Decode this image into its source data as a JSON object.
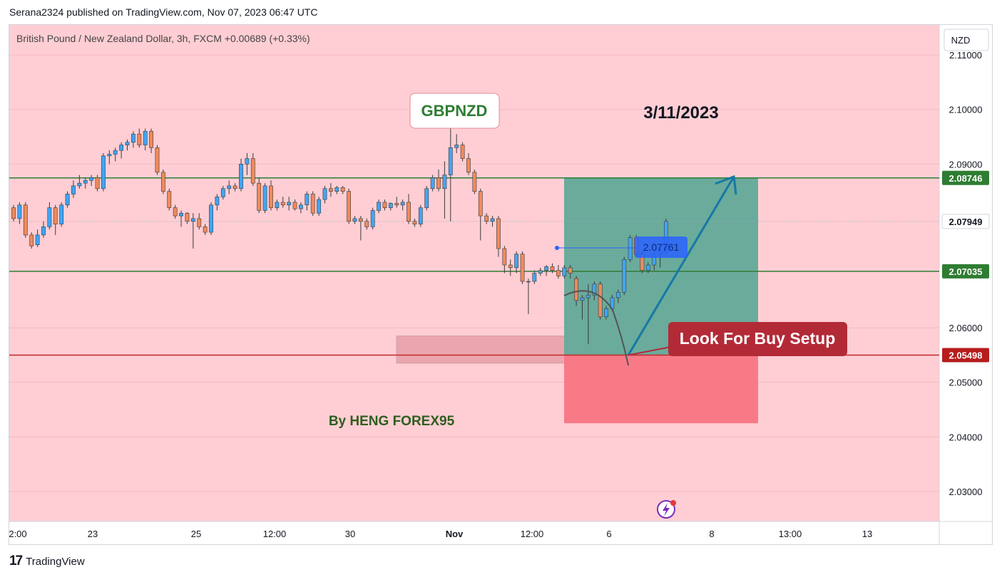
{
  "header": {
    "published": "Serana2324 published on TradingView.com, Nov 07, 2023 06:47 UTC"
  },
  "footer": {
    "brand": "TradingView",
    "logo": "17"
  },
  "chart_data": {
    "type": "candlestick",
    "symbol_line": {
      "symbol": "British Pound / New Zealand Dollar, 3h, FXCM",
      "change": "+0.00689 (+0.33%)"
    },
    "currency_button": "NZD",
    "ylim": [
      2.024,
      2.116
    ],
    "y_ticks": [
      "2.11000",
      "2.10000",
      "2.09000",
      "2.06000",
      "2.05000",
      "2.04000",
      "2.03000"
    ],
    "x_ticks": [
      {
        "label": "2:00",
        "bold": false
      },
      {
        "label": "23",
        "bold": false
      },
      {
        "label": "25",
        "bold": false
      },
      {
        "label": "12:00",
        "bold": false
      },
      {
        "label": "30",
        "bold": false
      },
      {
        "label": "Nov",
        "bold": true
      },
      {
        "label": "12:00",
        "bold": false
      },
      {
        "label": "6",
        "bold": false
      },
      {
        "label": "8",
        "bold": false
      },
      {
        "label": "13:00",
        "bold": false
      },
      {
        "label": "13",
        "bold": false
      }
    ],
    "price_labels": [
      {
        "value": 2.08746,
        "text": "2.08746",
        "color": "#2e7d32",
        "text_color": "#ffffff"
      },
      {
        "value": 2.07949,
        "text": "2.07949",
        "color": "#ffffff",
        "text_color": "#131722"
      },
      {
        "value": 2.07035,
        "text": "2.07035",
        "color": "#2e7d32",
        "text_color": "#ffffff"
      },
      {
        "value": 2.05498,
        "text": "2.05498",
        "color": "#b71c1c",
        "text_color": "#ffffff"
      }
    ],
    "horizontal_lines": [
      {
        "value": 2.08746,
        "color": "#2e7d32"
      },
      {
        "value": 2.07035,
        "color": "#2e7d32"
      },
      {
        "value": 2.05498,
        "color": "#c62828"
      }
    ],
    "candles": [
      {
        "o": 2.082,
        "h": 2.0825,
        "l": 2.0795,
        "c": 2.08
      },
      {
        "o": 2.08,
        "h": 2.083,
        "l": 2.079,
        "c": 2.0825
      },
      {
        "o": 2.0825,
        "h": 2.083,
        "l": 2.0765,
        "c": 2.077
      },
      {
        "o": 2.077,
        "h": 2.0775,
        "l": 2.0745,
        "c": 2.075
      },
      {
        "o": 2.0752,
        "h": 2.078,
        "l": 2.0748,
        "c": 2.077
      },
      {
        "o": 2.077,
        "h": 2.0795,
        "l": 2.0765,
        "c": 2.0785
      },
      {
        "o": 2.0785,
        "h": 2.083,
        "l": 2.078,
        "c": 2.082
      },
      {
        "o": 2.082,
        "h": 2.0825,
        "l": 2.077,
        "c": 2.079
      },
      {
        "o": 2.079,
        "h": 2.083,
        "l": 2.0785,
        "c": 2.0825
      },
      {
        "o": 2.0825,
        "h": 2.085,
        "l": 2.082,
        "c": 2.0845
      },
      {
        "o": 2.0845,
        "h": 2.087,
        "l": 2.0838,
        "c": 2.086
      },
      {
        "o": 2.086,
        "h": 2.088,
        "l": 2.0855,
        "c": 2.0865
      },
      {
        "o": 2.0865,
        "h": 2.0875,
        "l": 2.0855,
        "c": 2.087
      },
      {
        "o": 2.087,
        "h": 2.088,
        "l": 2.086,
        "c": 2.0875
      },
      {
        "o": 2.0875,
        "h": 2.088,
        "l": 2.085,
        "c": 2.0855
      },
      {
        "o": 2.0855,
        "h": 2.092,
        "l": 2.085,
        "c": 2.0915
      },
      {
        "o": 2.0915,
        "h": 2.0925,
        "l": 2.09,
        "c": 2.0918
      },
      {
        "o": 2.0918,
        "h": 2.093,
        "l": 2.0905,
        "c": 2.0925
      },
      {
        "o": 2.0925,
        "h": 2.094,
        "l": 2.091,
        "c": 2.0935
      },
      {
        "o": 2.0935,
        "h": 2.0945,
        "l": 2.0925,
        "c": 2.094
      },
      {
        "o": 2.094,
        "h": 2.096,
        "l": 2.093,
        "c": 2.0955
      },
      {
        "o": 2.0955,
        "h": 2.0965,
        "l": 2.093,
        "c": 2.0935
      },
      {
        "o": 2.0935,
        "h": 2.0965,
        "l": 2.0925,
        "c": 2.096
      },
      {
        "o": 2.096,
        "h": 2.0965,
        "l": 2.092,
        "c": 2.093
      },
      {
        "o": 2.093,
        "h": 2.0935,
        "l": 2.088,
        "c": 2.0885
      },
      {
        "o": 2.0885,
        "h": 2.089,
        "l": 2.0845,
        "c": 2.085
      },
      {
        "o": 2.085,
        "h": 2.0855,
        "l": 2.0815,
        "c": 2.082
      },
      {
        "o": 2.082,
        "h": 2.0825,
        "l": 2.08,
        "c": 2.0805
      },
      {
        "o": 2.0805,
        "h": 2.0815,
        "l": 2.0785,
        "c": 2.081
      },
      {
        "o": 2.081,
        "h": 2.0812,
        "l": 2.079,
        "c": 2.0795
      },
      {
        "o": 2.0795,
        "h": 2.081,
        "l": 2.0745,
        "c": 2.08
      },
      {
        "o": 2.08,
        "h": 2.081,
        "l": 2.078,
        "c": 2.0785
      },
      {
        "o": 2.0785,
        "h": 2.079,
        "l": 2.077,
        "c": 2.0775
      },
      {
        "o": 2.0775,
        "h": 2.083,
        "l": 2.077,
        "c": 2.0825
      },
      {
        "o": 2.0825,
        "h": 2.0845,
        "l": 2.0815,
        "c": 2.084
      },
      {
        "o": 2.084,
        "h": 2.086,
        "l": 2.0835,
        "c": 2.0855
      },
      {
        "o": 2.0855,
        "h": 2.087,
        "l": 2.0845,
        "c": 2.086
      },
      {
        "o": 2.086,
        "h": 2.0865,
        "l": 2.085,
        "c": 2.0855
      },
      {
        "o": 2.0855,
        "h": 2.091,
        "l": 2.085,
        "c": 2.09
      },
      {
        "o": 2.09,
        "h": 2.092,
        "l": 2.088,
        "c": 2.091
      },
      {
        "o": 2.091,
        "h": 2.092,
        "l": 2.086,
        "c": 2.0865
      },
      {
        "o": 2.0865,
        "h": 2.0875,
        "l": 2.081,
        "c": 2.0815
      },
      {
        "o": 2.0815,
        "h": 2.0865,
        "l": 2.081,
        "c": 2.086
      },
      {
        "o": 2.086,
        "h": 2.087,
        "l": 2.0815,
        "c": 2.082
      },
      {
        "o": 2.082,
        "h": 2.0835,
        "l": 2.0815,
        "c": 2.083
      },
      {
        "o": 2.083,
        "h": 2.084,
        "l": 2.082,
        "c": 2.0825
      },
      {
        "o": 2.0825,
        "h": 2.084,
        "l": 2.0815,
        "c": 2.083
      },
      {
        "o": 2.083,
        "h": 2.0835,
        "l": 2.0815,
        "c": 2.0818
      },
      {
        "o": 2.0818,
        "h": 2.083,
        "l": 2.081,
        "c": 2.0825
      },
      {
        "o": 2.0825,
        "h": 2.085,
        "l": 2.0815,
        "c": 2.0845
      },
      {
        "o": 2.0845,
        "h": 2.085,
        "l": 2.0805,
        "c": 2.081
      },
      {
        "o": 2.081,
        "h": 2.084,
        "l": 2.0805,
        "c": 2.0835
      },
      {
        "o": 2.0835,
        "h": 2.086,
        "l": 2.0828,
        "c": 2.0855
      },
      {
        "o": 2.0855,
        "h": 2.0865,
        "l": 2.084,
        "c": 2.085
      },
      {
        "o": 2.085,
        "h": 2.086,
        "l": 2.0845,
        "c": 2.0857
      },
      {
        "o": 2.0857,
        "h": 2.086,
        "l": 2.0845,
        "c": 2.085
      },
      {
        "o": 2.085,
        "h": 2.0855,
        "l": 2.079,
        "c": 2.0795
      },
      {
        "o": 2.0795,
        "h": 2.0805,
        "l": 2.079,
        "c": 2.08
      },
      {
        "o": 2.08,
        "h": 2.0805,
        "l": 2.076,
        "c": 2.0795
      },
      {
        "o": 2.0795,
        "h": 2.08,
        "l": 2.078,
        "c": 2.0785
      },
      {
        "o": 2.0785,
        "h": 2.082,
        "l": 2.078,
        "c": 2.0815
      },
      {
        "o": 2.0815,
        "h": 2.0835,
        "l": 2.081,
        "c": 2.083
      },
      {
        "o": 2.083,
        "h": 2.0835,
        "l": 2.0815,
        "c": 2.082
      },
      {
        "o": 2.082,
        "h": 2.083,
        "l": 2.0815,
        "c": 2.0828
      },
      {
        "o": 2.0828,
        "h": 2.084,
        "l": 2.082,
        "c": 2.0825
      },
      {
        "o": 2.0825,
        "h": 2.0835,
        "l": 2.0815,
        "c": 2.083
      },
      {
        "o": 2.083,
        "h": 2.0845,
        "l": 2.079,
        "c": 2.0795
      },
      {
        "o": 2.0795,
        "h": 2.08,
        "l": 2.0785,
        "c": 2.079
      },
      {
        "o": 2.079,
        "h": 2.0825,
        "l": 2.0785,
        "c": 2.082
      },
      {
        "o": 2.082,
        "h": 2.086,
        "l": 2.0815,
        "c": 2.0855
      },
      {
        "o": 2.0855,
        "h": 2.088,
        "l": 2.085,
        "c": 2.0875
      },
      {
        "o": 2.0875,
        "h": 2.089,
        "l": 2.085,
        "c": 2.0855
      },
      {
        "o": 2.0855,
        "h": 2.0905,
        "l": 2.08,
        "c": 2.088
      },
      {
        "o": 2.088,
        "h": 2.0975,
        "l": 2.0795,
        "c": 2.093
      },
      {
        "o": 2.093,
        "h": 2.0955,
        "l": 2.092,
        "c": 2.0935
      },
      {
        "o": 2.0935,
        "h": 2.094,
        "l": 2.0905,
        "c": 2.091
      },
      {
        "o": 2.091,
        "h": 2.092,
        "l": 2.088,
        "c": 2.0885
      },
      {
        "o": 2.0885,
        "h": 2.089,
        "l": 2.0845,
        "c": 2.085
      },
      {
        "o": 2.085,
        "h": 2.0855,
        "l": 2.076,
        "c": 2.0805
      },
      {
        "o": 2.0805,
        "h": 2.081,
        "l": 2.079,
        "c": 2.0795
      },
      {
        "o": 2.0795,
        "h": 2.0805,
        "l": 2.0785,
        "c": 2.08
      },
      {
        "o": 2.08,
        "h": 2.0805,
        "l": 2.073,
        "c": 2.0745
      },
      {
        "o": 2.0745,
        "h": 2.075,
        "l": 2.07,
        "c": 2.0715
      },
      {
        "o": 2.0715,
        "h": 2.0725,
        "l": 2.0695,
        "c": 2.071
      },
      {
        "o": 2.071,
        "h": 2.074,
        "l": 2.07,
        "c": 2.0735
      },
      {
        "o": 2.0735,
        "h": 2.074,
        "l": 2.068,
        "c": 2.0685
      },
      {
        "o": 2.0685,
        "h": 2.069,
        "l": 2.0625,
        "c": 2.0685
      },
      {
        "o": 2.0685,
        "h": 2.0705,
        "l": 2.068,
        "c": 2.07
      },
      {
        "o": 2.07,
        "h": 2.071,
        "l": 2.0695,
        "c": 2.0705
      },
      {
        "o": 2.0705,
        "h": 2.0715,
        "l": 2.0695,
        "c": 2.0712
      },
      {
        "o": 2.0712,
        "h": 2.0718,
        "l": 2.07,
        "c": 2.0705
      },
      {
        "o": 2.0705,
        "h": 2.0715,
        "l": 2.069,
        "c": 2.0695
      },
      {
        "o": 2.0695,
        "h": 2.0715,
        "l": 2.069,
        "c": 2.071
      },
      {
        "o": 2.071,
        "h": 2.0715,
        "l": 2.069,
        "c": 2.07
      },
      {
        "o": 2.069,
        "h": 2.0695,
        "l": 2.064,
        "c": 2.065
      },
      {
        "o": 2.065,
        "h": 2.066,
        "l": 2.0615,
        "c": 2.0655
      },
      {
        "o": 2.0655,
        "h": 2.068,
        "l": 2.057,
        "c": 2.066
      },
      {
        "o": 2.066,
        "h": 2.0685,
        "l": 2.065,
        "c": 2.068
      },
      {
        "o": 2.068,
        "h": 2.0685,
        "l": 2.0615,
        "c": 2.062
      },
      {
        "o": 2.062,
        "h": 2.064,
        "l": 2.0615,
        "c": 2.0635
      },
      {
        "o": 2.0635,
        "h": 2.066,
        "l": 2.063,
        "c": 2.0655
      },
      {
        "o": 2.0655,
        "h": 2.067,
        "l": 2.0645,
        "c": 2.0665
      },
      {
        "o": 2.0665,
        "h": 2.073,
        "l": 2.066,
        "c": 2.0725
      },
      {
        "o": 2.0725,
        "h": 2.077,
        "l": 2.072,
        "c": 2.0765
      },
      {
        "o": 2.0765,
        "h": 2.077,
        "l": 2.073,
        "c": 2.0735
      },
      {
        "o": 2.0735,
        "h": 2.074,
        "l": 2.07,
        "c": 2.0705
      },
      {
        "o": 2.0705,
        "h": 2.072,
        "l": 2.07,
        "c": 2.0715
      },
      {
        "o": 2.0715,
        "h": 2.074,
        "l": 2.0705,
        "c": 2.0735
      },
      {
        "o": 2.0735,
        "h": 2.0745,
        "l": 2.071,
        "c": 2.074
      },
      {
        "o": 2.074,
        "h": 2.08,
        "l": 2.0735,
        "c": 2.0795
      }
    ],
    "colors": {
      "background": "#ffced4",
      "up": "#42a5f5",
      "down": "#f08a5d",
      "wick": "#3a3a3a",
      "profit_zone": "#6aab9c",
      "loss_zone": "#f77a86",
      "demand_zone": "#e9a1a9",
      "arrow": "#1778a6",
      "callout": "#b32a37",
      "blue_label": "#2962ff"
    },
    "annotations": {
      "title_box": "GBPNZD",
      "date_text": "3/11/2023",
      "author_text": "By HENG FOREX95",
      "callout_text": "Look For Buy Setup",
      "price_tag_text": "2.07761",
      "price_tag_value": 2.07761,
      "profit_top": 2.08746,
      "entry": 2.05498,
      "loss_bottom": 2.0425,
      "demand_zone_top": 2.0585,
      "demand_zone_bottom": 2.0535,
      "arrow_from": 2.05498,
      "arrow_to": 2.0877
    }
  }
}
